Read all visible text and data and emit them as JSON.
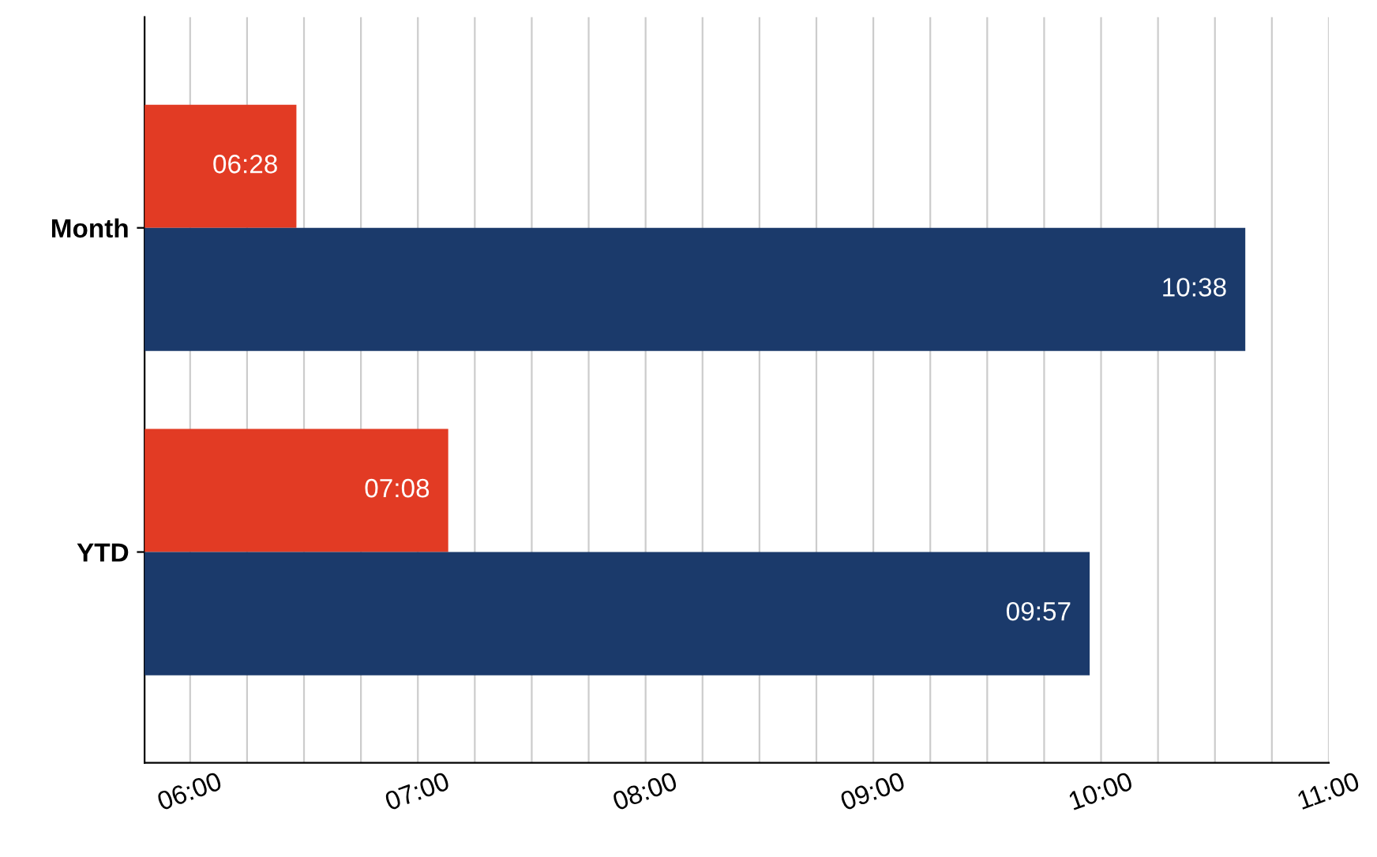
{
  "chart_data": {
    "type": "bar",
    "orientation": "horizontal",
    "categories": [
      "Month",
      "YTD"
    ],
    "series": [
      {
        "color": "#e23b24",
        "values": [
          6.4667,
          7.1333
        ],
        "value_labels": [
          "06:28",
          "07:08"
        ]
      },
      {
        "color": "#1b3a6b",
        "values": [
          10.6333,
          9.95
        ],
        "value_labels": [
          "10:38",
          "09:57"
        ]
      }
    ],
    "xlim": [
      5.8,
      11
    ],
    "xticks": [
      {
        "value": 6,
        "label": "06:00"
      },
      {
        "value": 6.25,
        "label": null
      },
      {
        "value": 6.5,
        "label": null
      },
      {
        "value": 6.75,
        "label": null
      },
      {
        "value": 7,
        "label": "07:00"
      },
      {
        "value": 7.25,
        "label": null
      },
      {
        "value": 7.5,
        "label": null
      },
      {
        "value": 7.75,
        "label": null
      },
      {
        "value": 8,
        "label": "08:00"
      },
      {
        "value": 8.25,
        "label": null
      },
      {
        "value": 8.5,
        "label": null
      },
      {
        "value": 8.75,
        "label": null
      },
      {
        "value": 9,
        "label": "09:00"
      },
      {
        "value": 9.25,
        "label": null
      },
      {
        "value": 9.5,
        "label": null
      },
      {
        "value": 9.75,
        "label": null
      },
      {
        "value": 10,
        "label": "10:00"
      },
      {
        "value": 10.25,
        "label": null
      },
      {
        "value": 10.5,
        "label": null
      },
      {
        "value": 10.75,
        "label": null
      },
      {
        "value": 11,
        "label": "11:00"
      }
    ],
    "grid": "x"
  }
}
